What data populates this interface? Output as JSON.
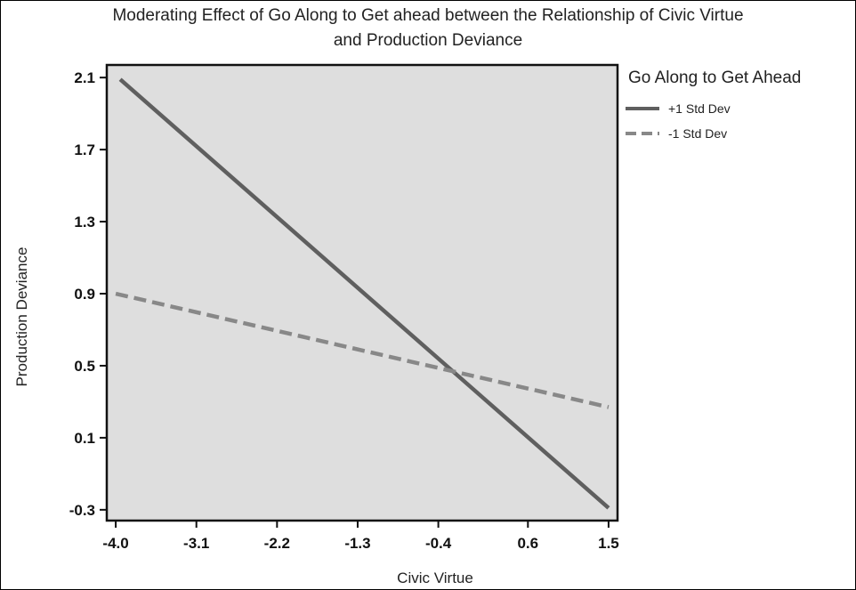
{
  "chart_data": {
    "type": "line",
    "title_lines": [
      "Moderating Effect of Go Along to Get ahead between the Relationship of Civic Virtue",
      "and Production Deviance"
    ],
    "xlabel": "Civic Virtue",
    "ylabel": "Production Deviance",
    "x_ticks": [
      "-4.0",
      "-3.1",
      "-2.2",
      "-1.3",
      "-0.4",
      "0.6",
      "1.5"
    ],
    "y_ticks": [
      "2.1",
      "1.7",
      "1.3",
      "0.9",
      "0.5",
      "0.1",
      "-0.3"
    ],
    "xlim": [
      -4.1,
      1.6
    ],
    "ylim": [
      -0.36,
      2.17
    ],
    "grid": false,
    "legend": {
      "title": "Go Along to Get Ahead",
      "placement": "right"
    },
    "series": [
      {
        "name": "+1 Std Dev",
        "style": "solid",
        "color": "#5f5f5f",
        "x": [
          -3.95,
          1.5
        ],
        "y": [
          2.09,
          -0.29
        ]
      },
      {
        "name": "-1 Std Dev",
        "style": "dashed",
        "color": "#888888",
        "x": [
          -4.0,
          1.5
        ],
        "y": [
          0.9,
          0.27
        ]
      }
    ],
    "plot_background": "#dedede"
  }
}
